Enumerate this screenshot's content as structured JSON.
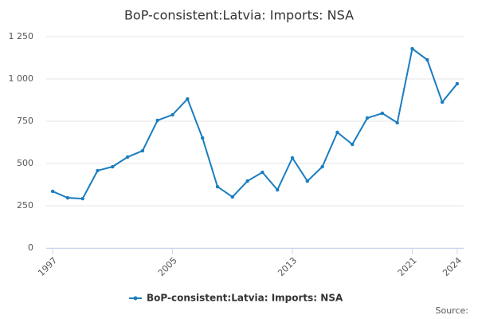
{
  "chart_data": {
    "type": "line",
    "title": "BoP-consistent:Latvia: Imports: NSA",
    "x": [
      1997,
      1998,
      1999,
      2000,
      2001,
      2002,
      2003,
      2004,
      2005,
      2006,
      2007,
      2008,
      2009,
      2010,
      2011,
      2012,
      2013,
      2014,
      2015,
      2016,
      2017,
      2018,
      2019,
      2020,
      2021,
      2022,
      2023,
      2024
    ],
    "series": [
      {
        "name": "BoP-consistent:Latvia: Imports: NSA",
        "color": "#1a7dc0",
        "values": [
          335,
          297,
          292,
          458,
          481,
          538,
          575,
          755,
          788,
          882,
          651,
          363,
          302,
          396,
          448,
          344,
          533,
          396,
          481,
          684,
          613,
          769,
          797,
          741,
          1179,
          1113,
          863,
          972
        ]
      }
    ],
    "xlim": [
      1996.57,
      2024.43
    ],
    "xticks": [
      1997,
      2005,
      2013,
      2021,
      2024
    ],
    "ylim": [
      0,
      1250
    ],
    "yticks": [
      0,
      250,
      500,
      750,
      {
        "value": 1000,
        "label": "1 000"
      },
      {
        "value": 1250,
        "label": "1 250"
      }
    ],
    "grid": true,
    "source": "Source:"
  }
}
